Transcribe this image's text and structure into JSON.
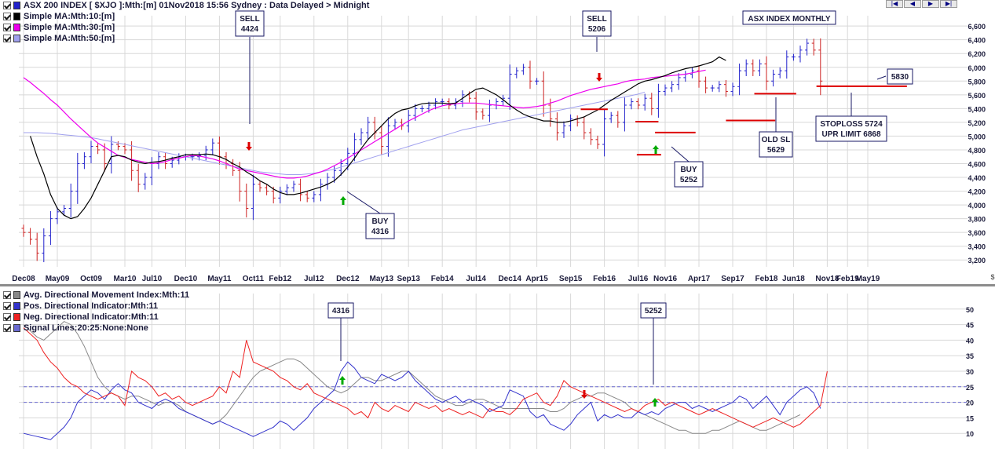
{
  "header": {
    "title": "ASX 200 INDEX [ $XJO ]:Mth:[m]  01Nov2018 15:56 Sydney : Data Delayed > Midnight"
  },
  "colors": {
    "price_up": "#2222cc",
    "price_down": "#cc2222",
    "ma10": "#000000",
    "ma30": "#ee00ee",
    "ma50": "#a0a0ee",
    "adx": "#888888",
    "pdi": "#3333cc",
    "ndi": "#ee2222",
    "signal": "#6a6ad0",
    "grid": "#d8d8d8",
    "level": "#dd0000",
    "arrow_up": "#00aa00",
    "arrow_down": "#dd0000"
  },
  "nav_buttons": [
    {
      "icon": "first-page-icon",
      "glyph": "|◀"
    },
    {
      "icon": "prev-page-icon",
      "glyph": "◀"
    },
    {
      "icon": "next-page-icon",
      "glyph": "▶"
    },
    {
      "icon": "last-page-icon",
      "glyph": "▶|"
    }
  ],
  "chart_data": [
    {
      "type": "ohlc",
      "title": "ASX INDEX MONTHLY",
      "legend": [
        {
          "name": "ASX 200 INDEX [ $XJO ]:Mth:[m]  01Nov2018 15:56 Sydney : Data Delayed > Midnight",
          "color": "#2222cc"
        },
        {
          "name": "Simple MA:Mth:10:[m]",
          "color": "#000000"
        },
        {
          "name": "Simple MA:Mth:30:[m]",
          "color": "#ee00ee"
        },
        {
          "name": "Simple MA:Mth:50:[m]",
          "color": "#a0a0ee"
        }
      ],
      "x_ticks": [
        "Dec08",
        "May09",
        "Oct09",
        "Mar10",
        "Jul10",
        "Dec10",
        "May11",
        "Oct11",
        "Feb12",
        "Jul12",
        "Dec12",
        "May13",
        "Sep13",
        "Feb14",
        "Jul14",
        "Dec14",
        "Apr15",
        "Sep15",
        "Feb16",
        "Jul16",
        "Nov16",
        "Apr17",
        "Sep17",
        "Feb18",
        "Jun18",
        "Nov18",
        "Feb19",
        "May19"
      ],
      "x_tick_months": [
        0,
        5,
        10,
        15,
        19,
        24,
        29,
        34,
        38,
        43,
        48,
        53,
        57,
        62,
        67,
        72,
        76,
        81,
        86,
        91,
        95,
        100,
        105,
        110,
        114,
        119,
        122,
        125
      ],
      "ylim": [
        3100,
        6750
      ],
      "y_ticks": [
        3200,
        3400,
        3600,
        3800,
        4000,
        4200,
        4400,
        4600,
        4800,
        5000,
        5200,
        5400,
        5600,
        5800,
        6000,
        6200,
        6400,
        6600
      ],
      "close": [
        3600,
        3500,
        3300,
        3550,
        3800,
        3900,
        3950,
        4200,
        4600,
        4700,
        4850,
        4800,
        4600,
        4880,
        4850,
        4800,
        4500,
        4300,
        4400,
        4600,
        4700,
        4600,
        4650,
        4700,
        4700,
        4700,
        4720,
        4800,
        4900,
        4700,
        4600,
        4500,
        4200,
        3950,
        4300,
        4250,
        4200,
        4100,
        4200,
        4250,
        4300,
        4150,
        4100,
        4150,
        4300,
        4400,
        4500,
        4600,
        4750,
        4950,
        5050,
        5200,
        5050,
        4850,
        5150,
        5200,
        5150,
        5300,
        5400,
        5400,
        5450,
        5500,
        5500,
        5450,
        5500,
        5600,
        5550,
        5350,
        5300,
        5450,
        5500,
        5550,
        5900,
        5950,
        6000,
        5800,
        5800,
        5450,
        5250,
        5050,
        5150,
        5250,
        5200,
        5050,
        4950,
        4880,
        5250,
        5300,
        5200,
        5450,
        5500,
        5450,
        5550,
        5400,
        5650,
        5700,
        5750,
        5850,
        5900,
        5950,
        5800,
        5700,
        5700,
        5750,
        5650,
        5720,
        5950,
        6050,
        5950,
        6050,
        5800,
        5900,
        5950,
        6150,
        6150,
        6250,
        6350,
        6250,
        5800
      ],
      "ma10_start_month": 1,
      "ma10": [
        5000,
        4700,
        4450,
        4150,
        3950,
        3850,
        3800,
        3830,
        3950,
        4100,
        4300,
        4500,
        4700,
        4720,
        4700,
        4650,
        4620,
        4600,
        4620,
        4630,
        4650,
        4680,
        4700,
        4730,
        4730,
        4730,
        4740,
        4730,
        4700,
        4660,
        4600,
        4550,
        4480,
        4420,
        4350,
        4300,
        4230,
        4180,
        4150,
        4150,
        4170,
        4200,
        4230,
        4260,
        4300,
        4350,
        4440,
        4550,
        4680,
        4820,
        4950,
        5050,
        5150,
        5250,
        5330,
        5380,
        5400,
        5440,
        5470,
        5480,
        5480,
        5480,
        5470,
        5480,
        5550,
        5620,
        5680,
        5700,
        5650,
        5600,
        5530,
        5450,
        5380,
        5320,
        5280,
        5250,
        5220,
        5220,
        5200,
        5200,
        5220,
        5250,
        5280,
        5330,
        5380,
        5450,
        5520,
        5580,
        5640,
        5700,
        5760,
        5800,
        5820,
        5850,
        5880,
        5920,
        5950,
        5980,
        6000,
        6020,
        6050,
        6080,
        6150,
        6100
      ],
      "ma30_start_month": 0,
      "ma30": [
        5850,
        5780,
        5700,
        5620,
        5530,
        5450,
        5350,
        5250,
        5160,
        5070,
        4980,
        4900,
        4840,
        4780,
        4720,
        4690,
        4660,
        4640,
        4620,
        4600,
        4610,
        4630,
        4660,
        4680,
        4700,
        4720,
        4710,
        4690,
        4670,
        4640,
        4600,
        4560,
        4520,
        4500,
        4480,
        4460,
        4440,
        4420,
        4400,
        4390,
        4390,
        4400,
        4420,
        4450,
        4480,
        4520,
        4570,
        4620,
        4680,
        4740,
        4800,
        4860,
        4920,
        4980,
        5040,
        5100,
        5160,
        5220,
        5270,
        5320,
        5370,
        5410,
        5440,
        5460,
        5470,
        5480,
        5480,
        5480,
        5470,
        5460,
        5450,
        5440,
        5430,
        5420,
        5410,
        5420,
        5430,
        5450,
        5480,
        5510,
        5550,
        5590,
        5620,
        5650,
        5680,
        5700,
        5720,
        5740,
        5760,
        5790,
        5810,
        5820,
        5830,
        5850,
        5860,
        5870,
        5880,
        5890,
        5900,
        5920,
        5940,
        5960
      ],
      "ma50_start_month": 0,
      "ma50": [
        5050,
        5050,
        5050,
        5045,
        5040,
        5030,
        5020,
        5010,
        5000,
        4990,
        4980,
        4960,
        4940,
        4920,
        4900,
        4880,
        4860,
        4840,
        4820,
        4800,
        4780,
        4760,
        4740,
        4720,
        4700,
        4680,
        4660,
        4640,
        4620,
        4600,
        4580,
        4560,
        4540,
        4520,
        4500,
        4480,
        4470,
        4460,
        4450,
        4440,
        4440,
        4440,
        4450,
        4460,
        4480,
        4500,
        4520,
        4550,
        4580,
        4610,
        4640,
        4670,
        4700,
        4730,
        4760,
        4790,
        4820,
        4850,
        4880,
        4910,
        4940,
        4970,
        5000,
        5030,
        5060,
        5090,
        5110,
        5130,
        5150,
        5170,
        5190,
        5210,
        5230,
        5250,
        5270,
        5290,
        5310,
        5330,
        5350,
        5370,
        5390,
        5410,
        5430,
        5450,
        5470,
        5490,
        5510,
        5530,
        5550,
        5570,
        5590,
        5610,
        5640
      ],
      "annotations": [
        {
          "label": "SELL",
          "value": "4424"
        },
        {
          "label": "SELL",
          "value": "5206"
        },
        {
          "label": "BUY",
          "value": "4316"
        },
        {
          "label": "BUY",
          "value": "5252"
        },
        {
          "label": "OLD SL",
          "value": "5629"
        },
        {
          "label": "STOPLOSS 5724",
          "value": "UPR LIMIT 6868"
        },
        {
          "label": "",
          "value": "5830"
        }
      ]
    },
    {
      "type": "line",
      "legend": [
        {
          "name": "Avg. Directional Movement Index:Mth:11",
          "color": "#888888"
        },
        {
          "name": "Pos. Directional Indicator:Mth:11",
          "color": "#3333cc"
        },
        {
          "name": "Neg. Directional Indicator:Mth:11",
          "color": "#ee2222"
        },
        {
          "name": "Signal Lines:20:25:None:None",
          "color": "#6a6ad0"
        }
      ],
      "ylim": [
        5,
        55
      ],
      "y_ticks": [
        10,
        15,
        20,
        25,
        30,
        35,
        40,
        45,
        50
      ],
      "signal_lines": [
        20,
        25
      ],
      "adx": [
        45,
        43,
        41,
        40,
        42,
        44,
        46,
        45,
        42,
        38,
        33,
        28,
        25,
        23,
        22,
        21,
        22,
        22,
        21,
        20,
        19,
        20,
        20,
        19,
        17,
        16,
        15,
        14,
        13,
        14,
        16,
        19,
        22,
        25,
        28,
        30,
        31,
        32,
        33,
        34,
        34,
        33,
        31,
        29,
        27,
        25,
        24,
        23,
        24,
        26,
        28,
        28,
        27,
        27,
        28,
        29,
        30,
        30,
        28,
        26,
        24,
        22,
        21,
        20,
        19,
        19,
        20,
        21,
        21,
        20,
        19,
        18,
        18,
        18,
        18,
        18,
        18,
        18,
        17,
        17,
        18,
        20,
        21,
        22,
        22,
        23,
        23,
        22,
        21,
        20,
        18,
        17,
        16,
        15,
        14,
        13,
        12,
        11,
        11,
        10,
        10,
        10,
        11,
        11,
        12,
        13,
        14,
        13,
        12,
        11,
        11,
        12,
        13,
        14,
        15,
        16
      ],
      "pdi": [
        10,
        9.5,
        9,
        8.5,
        8,
        10,
        12,
        15,
        20,
        22,
        24,
        23,
        21,
        24,
        26,
        24,
        23,
        20,
        19,
        18,
        20,
        21,
        20,
        18,
        17,
        16,
        15,
        14,
        13,
        14,
        13,
        12,
        11,
        10,
        9,
        10,
        11,
        12,
        14,
        13,
        11,
        13,
        15,
        18,
        20,
        22,
        24,
        30,
        33,
        31,
        28,
        27,
        26,
        29,
        28,
        27,
        28,
        30,
        27,
        25,
        23,
        21,
        20,
        21,
        22,
        20,
        21,
        20,
        19,
        17,
        18,
        19,
        24,
        23,
        22,
        17,
        15,
        16,
        13,
        12,
        11,
        13,
        16,
        18,
        20,
        14,
        16,
        15,
        16,
        15,
        15,
        17,
        16,
        17,
        16,
        18,
        19,
        20,
        20,
        18,
        19,
        18,
        17,
        18,
        19,
        20,
        22,
        21,
        18,
        20,
        22,
        19,
        16,
        20,
        22,
        24,
        25,
        23,
        18
      ],
      "ndi": [
        44,
        42,
        40,
        36,
        33,
        31,
        28,
        26,
        25,
        23,
        22,
        21,
        22,
        23,
        22,
        19,
        30,
        28,
        27,
        25,
        22,
        23,
        21,
        22,
        20,
        19,
        20,
        21,
        22,
        25,
        23,
        30,
        28,
        40,
        33,
        32,
        31,
        30,
        28,
        27,
        25,
        24,
        26,
        23,
        22,
        21,
        20,
        19,
        18,
        16,
        17,
        15,
        20,
        18,
        17,
        19,
        18,
        17,
        20,
        19,
        18,
        19,
        17,
        18,
        17,
        16,
        17,
        16,
        15,
        18,
        17,
        17,
        16,
        18,
        21,
        22,
        23,
        20,
        19,
        22,
        27,
        25,
        24,
        23,
        22,
        21,
        20,
        19,
        18,
        17,
        18,
        17,
        19,
        20,
        21,
        19,
        20,
        19,
        18,
        17,
        16,
        17,
        18,
        17,
        16,
        15,
        14,
        13,
        12,
        13,
        14,
        15,
        14,
        13,
        12,
        13,
        15,
        17,
        19,
        30
      ]
    }
  ]
}
